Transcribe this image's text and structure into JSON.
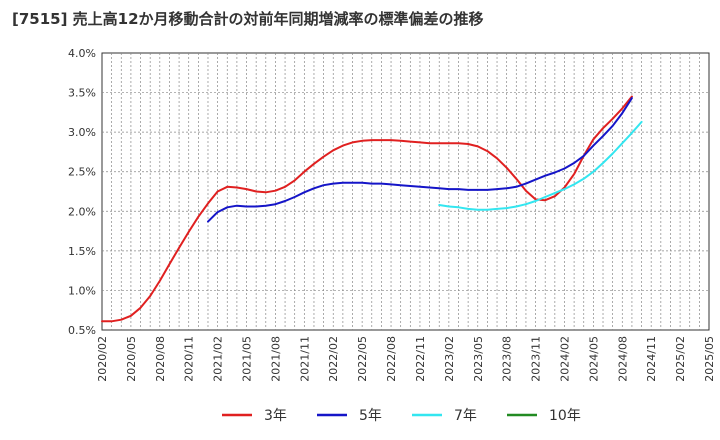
{
  "chart_data": {
    "type": "line",
    "title": "[7515]  売上高12か月移動合計の対前年同期増減率の標準偏差の推移",
    "xlabel": "",
    "ylabel": "",
    "ylim": [
      0.5,
      4.0
    ],
    "grid": true,
    "legend_position": "bottom",
    "y_ticks": [
      "0.5%",
      "1.0%",
      "1.5%",
      "2.0%",
      "2.5%",
      "3.0%",
      "3.5%",
      "4.0%"
    ],
    "x_ticks": [
      "2020/02",
      "2020/05",
      "2020/08",
      "2020/11",
      "2021/02",
      "2021/05",
      "2021/08",
      "2021/11",
      "2022/02",
      "2022/05",
      "2022/08",
      "2022/11",
      "2023/02",
      "2023/05",
      "2023/08",
      "2023/11",
      "2024/02",
      "2024/05",
      "2024/08",
      "2024/11",
      "2025/02",
      "2025/05"
    ],
    "x_start": "2020/02",
    "x_end": "2025/05",
    "series": [
      {
        "name": "3年",
        "color": "#e02020",
        "start": "2020/02",
        "values": [
          0.61,
          0.61,
          0.63,
          0.68,
          0.78,
          0.93,
          1.12,
          1.33,
          1.54,
          1.74,
          1.93,
          2.1,
          2.25,
          2.31,
          2.3,
          2.28,
          2.25,
          2.24,
          2.26,
          2.31,
          2.39,
          2.5,
          2.6,
          2.69,
          2.77,
          2.83,
          2.87,
          2.89,
          2.9,
          2.9,
          2.9,
          2.89,
          2.88,
          2.87,
          2.86,
          2.86,
          2.86,
          2.86,
          2.85,
          2.82,
          2.76,
          2.67,
          2.55,
          2.41,
          2.26,
          2.15,
          2.14,
          2.19,
          2.3,
          2.47,
          2.7,
          2.91,
          3.05,
          3.17,
          3.3,
          3.45
        ]
      },
      {
        "name": "5年",
        "color": "#1515c8",
        "start": "2021/01",
        "values": [
          1.87,
          1.99,
          2.05,
          2.07,
          2.06,
          2.06,
          2.07,
          2.09,
          2.13,
          2.18,
          2.24,
          2.29,
          2.33,
          2.35,
          2.36,
          2.36,
          2.36,
          2.35,
          2.35,
          2.34,
          2.33,
          2.32,
          2.31,
          2.3,
          2.29,
          2.28,
          2.28,
          2.27,
          2.27,
          2.27,
          2.28,
          2.29,
          2.31,
          2.35,
          2.4,
          2.45,
          2.49,
          2.54,
          2.61,
          2.7,
          2.83,
          2.95,
          3.08,
          3.24,
          3.43
        ]
      },
      {
        "name": "7年",
        "color": "#33e6f0",
        "start": "2023/01",
        "values": [
          2.08,
          2.06,
          2.05,
          2.03,
          2.02,
          2.02,
          2.03,
          2.04,
          2.06,
          2.09,
          2.13,
          2.18,
          2.23,
          2.28,
          2.34,
          2.41,
          2.5,
          2.61,
          2.73,
          2.86,
          2.99,
          3.13
        ]
      },
      {
        "name": "10年",
        "color": "#228b22",
        "start": "2025/03",
        "values": []
      }
    ]
  }
}
